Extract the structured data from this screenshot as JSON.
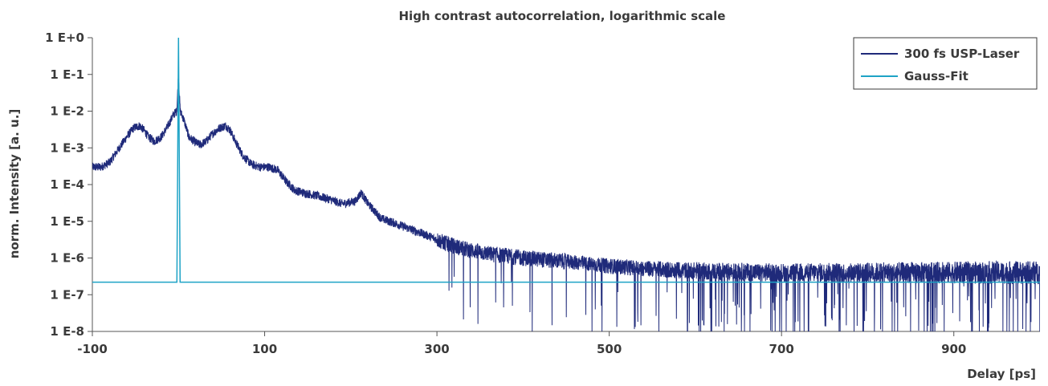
{
  "chart_data": {
    "type": "line",
    "title": "High contrast autocorrelation, logarithmic scale",
    "xlabel": "Delay [ps]",
    "ylabel": "norm. Intensity [a. u.]",
    "xlim": [
      -100,
      1000
    ],
    "ylim": [
      1e-08,
      1
    ],
    "yscale": "log",
    "x_ticks": [
      -100,
      100,
      300,
      500,
      700,
      900
    ],
    "x_tick_labels": [
      "-100",
      "100",
      "300",
      "500",
      "700",
      "900"
    ],
    "y_ticks": [
      1,
      0.1,
      0.01,
      0.001,
      0.0001,
      1e-05,
      1e-06,
      1e-07,
      1e-08
    ],
    "y_tick_labels": [
      "1 E+0",
      "1 E-1",
      "1 E-2",
      "1 E-3",
      "1 E-4",
      "1 E-5",
      "1 E-6",
      "1 E-7",
      "1 E-8"
    ],
    "grid": false,
    "legend_position": "top-right",
    "series": [
      {
        "name": "300 fs USP-Laser",
        "color": "#1f2a7a",
        "envelope": {
          "x": [
            -100,
            -90,
            -80,
            -70,
            -60,
            -52,
            -45,
            -40,
            -35,
            -28,
            -20,
            -12,
            -6,
            -2,
            0,
            2,
            6,
            12,
            18,
            25,
            32,
            40,
            48,
            55,
            60,
            66,
            75,
            85,
            95,
            105,
            115,
            125,
            135,
            145,
            160,
            175,
            190,
            205,
            212,
            220,
            235,
            250,
            270,
            290,
            310,
            330,
            360,
            400,
            450,
            500,
            550,
            600,
            650,
            700,
            800,
            900,
            1000
          ],
          "y": [
            0.0003,
            0.0003,
            0.0004,
            0.0009,
            0.002,
            0.0035,
            0.004,
            0.003,
            0.002,
            0.0015,
            0.002,
            0.004,
            0.008,
            0.01,
            0.1,
            0.01,
            0.006,
            0.002,
            0.0015,
            0.0012,
            0.0015,
            0.0025,
            0.0035,
            0.004,
            0.003,
            0.0015,
            0.0006,
            0.00035,
            0.0003,
            0.0003,
            0.00025,
            0.00012,
            7e-05,
            6e-05,
            5e-05,
            4e-05,
            3e-05,
            3.5e-05,
            6e-05,
            3e-05,
            1.2e-05,
            9e-06,
            6e-06,
            4e-06,
            2.5e-06,
            1.8e-06,
            1.3e-06,
            1e-06,
            8e-07,
            6e-07,
            5e-07,
            4.5e-07,
            4.2e-07,
            4e-07,
            4e-07,
            4e-07,
            4e-07
          ]
        }
      },
      {
        "name": "Gauss-Fit",
        "color": "#1ea3c6",
        "baseline": 2.2e-07,
        "peak_x": 0,
        "peak_y": 1
      }
    ]
  }
}
